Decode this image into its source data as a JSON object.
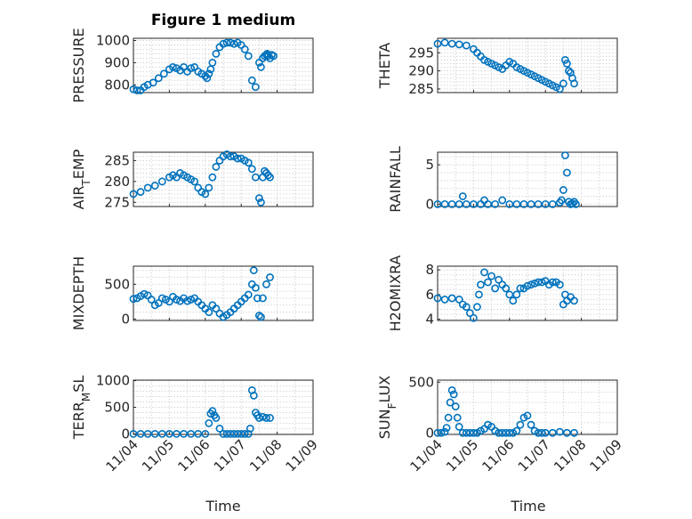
{
  "figure": {
    "title": "Figure 1 medium",
    "x_label": "Time"
  },
  "chart_data": [
    {
      "type": "scatter",
      "ylabel": "PRESSURE",
      "xlim": [
        0,
        5
      ],
      "ylim": [
        765,
        1010
      ],
      "yticks": [
        800,
        900,
        1000
      ],
      "xticks": [
        0,
        1,
        2,
        3,
        4,
        5
      ],
      "grid": true,
      "x": [
        0.0,
        0.1,
        0.2,
        0.3,
        0.4,
        0.55,
        0.7,
        0.85,
        1.0,
        1.1,
        1.2,
        1.3,
        1.4,
        1.5,
        1.6,
        1.7,
        1.8,
        1.9,
        2.0,
        2.05,
        2.1,
        2.15,
        2.2,
        2.3,
        2.4,
        2.5,
        2.6,
        2.7,
        2.8,
        2.9,
        3.0,
        3.1,
        3.2,
        3.3,
        3.4,
        3.5,
        3.55,
        3.6,
        3.65,
        3.7,
        3.72,
        3.75,
        3.8,
        3.85,
        3.9
      ],
      "y": [
        780,
        775,
        775,
        790,
        800,
        810,
        830,
        850,
        870,
        880,
        875,
        865,
        880,
        860,
        875,
        880,
        860,
        850,
        840,
        830,
        850,
        870,
        900,
        940,
        970,
        985,
        990,
        990,
        985,
        990,
        980,
        960,
        930,
        820,
        790,
        900,
        880,
        920,
        930,
        935,
        940,
        930,
        920,
        935,
        930
      ]
    },
    {
      "type": "scatter",
      "ylabel": "THETA",
      "xlim": [
        0,
        5
      ],
      "ylim": [
        284,
        299
      ],
      "yticks": [
        285,
        290,
        295
      ],
      "xticks": [
        0,
        1,
        2,
        3,
        4,
        5
      ],
      "grid": true,
      "x": [
        0.0,
        0.2,
        0.4,
        0.6,
        0.8,
        1.0,
        1.1,
        1.2,
        1.3,
        1.4,
        1.5,
        1.6,
        1.7,
        1.8,
        1.9,
        2.0,
        2.1,
        2.2,
        2.3,
        2.4,
        2.5,
        2.6,
        2.7,
        2.8,
        2.9,
        3.0,
        3.1,
        3.2,
        3.3,
        3.4,
        3.5,
        3.55,
        3.6,
        3.65,
        3.7,
        3.75,
        3.8
      ],
      "y": [
        297.5,
        297.8,
        297.5,
        297.3,
        297.0,
        296.0,
        295.0,
        294.0,
        293.0,
        292.5,
        292.0,
        291.5,
        291.0,
        290.5,
        291.5,
        292.5,
        292.0,
        291.0,
        290.5,
        290.0,
        289.5,
        289.0,
        288.5,
        288.0,
        287.5,
        287.0,
        286.5,
        286.0,
        285.5,
        285.0,
        286.5,
        293.0,
        292.0,
        290.0,
        289.5,
        288.0,
        286.5
      ]
    },
    {
      "type": "scatter",
      "ylabel": "AIR_TEMP",
      "xlim": [
        0,
        5
      ],
      "ylim": [
        274,
        287
      ],
      "yticks": [
        275,
        280,
        285
      ],
      "xticks": [
        0,
        1,
        2,
        3,
        4,
        5
      ],
      "grid": true,
      "x": [
        0.0,
        0.2,
        0.4,
        0.6,
        0.8,
        1.0,
        1.1,
        1.2,
        1.3,
        1.4,
        1.5,
        1.6,
        1.7,
        1.8,
        1.9,
        2.0,
        2.1,
        2.2,
        2.3,
        2.4,
        2.5,
        2.6,
        2.7,
        2.8,
        2.9,
        3.0,
        3.1,
        3.2,
        3.3,
        3.4,
        3.5,
        3.55,
        3.6,
        3.65,
        3.7,
        3.75,
        3.8
      ],
      "y": [
        277.0,
        277.5,
        278.5,
        279.0,
        280.0,
        281.0,
        281.5,
        281.0,
        282.0,
        281.5,
        281.0,
        280.5,
        280.0,
        278.5,
        277.5,
        277.0,
        278.5,
        281.0,
        283.5,
        285.0,
        286.0,
        286.5,
        286.0,
        286.0,
        285.5,
        285.5,
        285.0,
        284.5,
        283.0,
        281.0,
        276.0,
        275.0,
        281.0,
        282.5,
        282.0,
        281.5,
        281.0
      ]
    },
    {
      "type": "scatter",
      "ylabel": "RAINFALL",
      "xlim": [
        0,
        5
      ],
      "ylim": [
        -0.3,
        6.6
      ],
      "yticks": [
        0,
        5
      ],
      "xticks": [
        0,
        1,
        2,
        3,
        4,
        5
      ],
      "grid": true,
      "x": [
        0.0,
        0.2,
        0.4,
        0.6,
        0.7,
        0.8,
        1.0,
        1.2,
        1.3,
        1.4,
        1.6,
        1.8,
        2.0,
        2.2,
        2.4,
        2.6,
        2.8,
        3.0,
        3.2,
        3.4,
        3.45,
        3.5,
        3.55,
        3.6,
        3.65,
        3.7,
        3.75,
        3.8,
        3.85
      ],
      "y": [
        0,
        0,
        0,
        0,
        1.0,
        0,
        0,
        0,
        0.5,
        0,
        0,
        0.5,
        0,
        0,
        0,
        0,
        0,
        0,
        0,
        0.2,
        0.5,
        1.8,
        6.2,
        4.0,
        0.3,
        0,
        0.1,
        0.3,
        0
      ]
    },
    {
      "type": "scatter",
      "ylabel": "MIXDEPTH",
      "xlim": [
        0,
        5
      ],
      "ylim": [
        -20,
        760
      ],
      "yticks": [
        0,
        500
      ],
      "xticks": [
        0,
        1,
        2,
        3,
        4,
        5
      ],
      "grid": true,
      "x": [
        0.0,
        0.1,
        0.2,
        0.3,
        0.4,
        0.5,
        0.6,
        0.7,
        0.8,
        0.9,
        1.0,
        1.1,
        1.2,
        1.3,
        1.4,
        1.5,
        1.6,
        1.7,
        1.8,
        1.9,
        2.0,
        2.1,
        2.2,
        2.3,
        2.4,
        2.5,
        2.6,
        2.7,
        2.8,
        2.9,
        3.0,
        3.1,
        3.2,
        3.3,
        3.35,
        3.4,
        3.45,
        3.5,
        3.55,
        3.6,
        3.7,
        3.8
      ],
      "y": [
        290,
        300,
        330,
        360,
        340,
        280,
        200,
        230,
        300,
        280,
        250,
        320,
        280,
        260,
        300,
        260,
        280,
        300,
        250,
        200,
        150,
        100,
        200,
        150,
        80,
        30,
        60,
        100,
        150,
        200,
        250,
        300,
        350,
        500,
        700,
        450,
        300,
        50,
        30,
        300,
        500,
        600
      ]
    },
    {
      "type": "scatter",
      "ylabel": "H2OMIXRA",
      "xlim": [
        0,
        5
      ],
      "ylim": [
        3.9,
        8.3
      ],
      "yticks": [
        4,
        6,
        8
      ],
      "xticks": [
        0,
        1,
        2,
        3,
        4,
        5
      ],
      "grid": true,
      "x": [
        0.0,
        0.2,
        0.4,
        0.6,
        0.7,
        0.8,
        0.9,
        1.0,
        1.1,
        1.15,
        1.2,
        1.3,
        1.4,
        1.5,
        1.6,
        1.7,
        1.8,
        1.9,
        2.0,
        2.1,
        2.2,
        2.3,
        2.4,
        2.5,
        2.6,
        2.7,
        2.8,
        2.9,
        3.0,
        3.1,
        3.2,
        3.3,
        3.4,
        3.5,
        3.55,
        3.6,
        3.7,
        3.8
      ],
      "y": [
        5.7,
        5.6,
        5.7,
        5.6,
        5.2,
        5.0,
        4.5,
        4.1,
        5.0,
        6.0,
        6.8,
        7.8,
        7.0,
        7.5,
        6.5,
        7.2,
        6.8,
        6.5,
        6.0,
        5.5,
        6.0,
        6.5,
        6.5,
        6.7,
        6.8,
        6.9,
        7.0,
        7.0,
        7.1,
        6.8,
        7.0,
        7.0,
        6.8,
        5.2,
        6.0,
        5.5,
        5.8,
        5.5
      ]
    },
    {
      "type": "scatter",
      "ylabel": "TERR_MSL",
      "xlim": [
        0,
        5
      ],
      "ylim": [
        -10,
        1010
      ],
      "yticks": [
        0,
        500,
        1000
      ],
      "xticks": [
        0,
        1,
        2,
        3,
        4,
        5
      ],
      "grid": true,
      "x": [
        0.0,
        0.2,
        0.4,
        0.6,
        0.8,
        1.0,
        1.2,
        1.4,
        1.6,
        1.8,
        2.0,
        2.1,
        2.15,
        2.2,
        2.25,
        2.3,
        2.4,
        2.5,
        2.6,
        2.7,
        2.8,
        2.9,
        3.0,
        3.1,
        3.2,
        3.25,
        3.3,
        3.35,
        3.4,
        3.45,
        3.5,
        3.6,
        3.7,
        3.8
      ],
      "y": [
        0,
        0,
        0,
        0,
        0,
        0,
        0,
        0,
        0,
        0,
        0,
        200,
        380,
        430,
        350,
        300,
        100,
        0,
        0,
        0,
        0,
        0,
        0,
        0,
        0,
        100,
        820,
        720,
        400,
        350,
        300,
        320,
        300,
        300
      ]
    },
    {
      "type": "scatter",
      "ylabel": "SUN_FLUX",
      "xlim": [
        0,
        5
      ],
      "ylim": [
        -15,
        520
      ],
      "yticks": [
        0,
        500
      ],
      "xticks": [
        0,
        1,
        2,
        3,
        4,
        5
      ],
      "grid": true,
      "x": [
        0.0,
        0.1,
        0.2,
        0.25,
        0.3,
        0.35,
        0.4,
        0.45,
        0.5,
        0.55,
        0.6,
        0.7,
        0.8,
        0.9,
        1.0,
        1.1,
        1.2,
        1.3,
        1.4,
        1.5,
        1.6,
        1.7,
        1.8,
        1.9,
        2.0,
        2.1,
        2.2,
        2.3,
        2.4,
        2.5,
        2.6,
        2.7,
        2.8,
        2.9,
        3.0,
        3.2,
        3.4,
        3.6,
        3.8
      ],
      "y": [
        0,
        0,
        10,
        50,
        150,
        300,
        420,
        380,
        260,
        150,
        60,
        0,
        0,
        0,
        0,
        0,
        20,
        40,
        80,
        60,
        20,
        0,
        0,
        0,
        0,
        0,
        20,
        80,
        150,
        170,
        80,
        20,
        0,
        0,
        0,
        0,
        10,
        0,
        0
      ]
    }
  ],
  "x_tick_labels": [
    "11/04",
    "11/05",
    "11/06",
    "11/07",
    "11/08",
    "11/09"
  ],
  "style": {
    "marker_color": "#0072BD",
    "axis_color": "#262626",
    "grid_color": "#d6d6d6"
  }
}
